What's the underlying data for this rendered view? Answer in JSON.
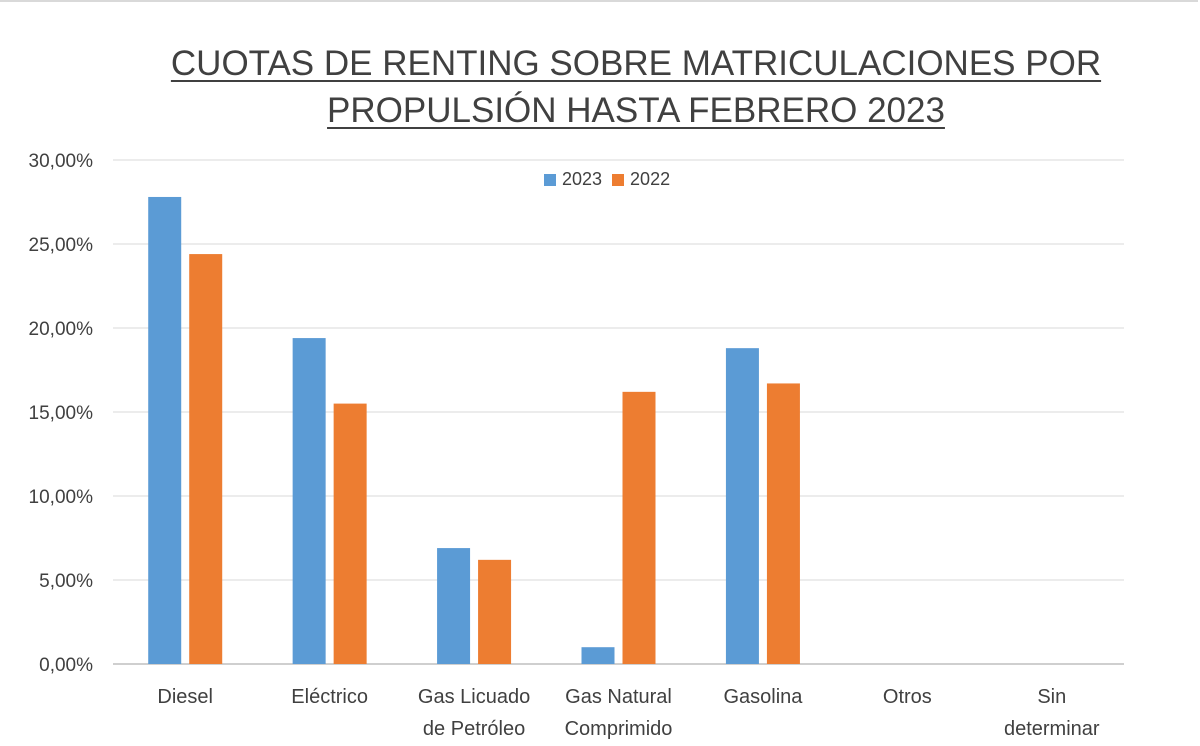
{
  "chart_data": {
    "type": "bar",
    "title_lines": [
      "CUOTAS DE RENTING SOBRE MATRICULACIONES POR",
      "PROPULSIÓN HASTA FEBRERO 2023"
    ],
    "categories": [
      [
        "Diesel"
      ],
      [
        "Eléctrico"
      ],
      [
        "Gas Licuado",
        "de Petróleo"
      ],
      [
        "Gas Natural",
        "Comprimido"
      ],
      [
        "Gasolina"
      ],
      [
        "Otros"
      ],
      [
        "Sin",
        "determinar"
      ]
    ],
    "series": [
      {
        "name": "2023",
        "color": "#5b9bd5",
        "values": [
          27.8,
          19.4,
          6.9,
          1.0,
          18.8,
          0,
          0
        ]
      },
      {
        "name": "2022",
        "color": "#ed7d31",
        "values": [
          24.4,
          15.5,
          6.2,
          16.2,
          16.7,
          0,
          0
        ]
      }
    ],
    "ylim": [
      0,
      30
    ],
    "yticks": [
      "0,00%",
      "5,00%",
      "10,00%",
      "15,00%",
      "20,00%",
      "25,00%",
      "30,00%"
    ],
    "grid": true,
    "legend_position": "top-center"
  }
}
